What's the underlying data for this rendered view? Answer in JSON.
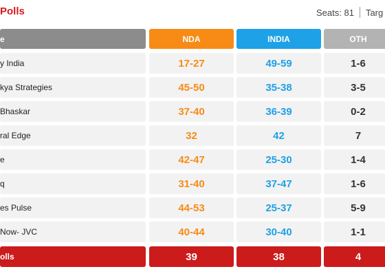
{
  "header": {
    "title": "Polls",
    "seats_text": "Seats: 81",
    "target_text": "Targ"
  },
  "columns": {
    "agency": "e",
    "nda": "NDA",
    "india": "INDIA",
    "oth": "OTH"
  },
  "rows": [
    {
      "agency": "y India",
      "nda": "17-27",
      "india": "49-59",
      "oth": "1-6"
    },
    {
      "agency": "kya Strategies",
      "nda": "45-50",
      "india": "35-38",
      "oth": "3-5"
    },
    {
      "agency": "Bhaskar",
      "nda": "37-40",
      "india": "36-39",
      "oth": "0-2"
    },
    {
      "agency": "ral Edge",
      "nda": "32",
      "india": "42",
      "oth": "7"
    },
    {
      "agency": "e",
      "nda": "42-47",
      "india": "25-30",
      "oth": "1-4"
    },
    {
      "agency": "q",
      "nda": "31-40",
      "india": "37-47",
      "oth": "1-6"
    },
    {
      "agency": "es Pulse",
      "nda": "44-53",
      "india": "25-37",
      "oth": "5-9"
    },
    {
      "agency": "Now- JVC",
      "nda": "40-44",
      "india": "30-40",
      "oth": "1-1"
    }
  ],
  "total": {
    "agency": "olls",
    "nda": "39",
    "india": "38",
    "oth": "4"
  },
  "colors": {
    "nda": "#f78b16",
    "india": "#1ea1e6",
    "oth_header": "#b3b3b3",
    "agency_header": "#8c8c8c",
    "total_bg": "#cc1b1b",
    "title": "#d7191c"
  }
}
